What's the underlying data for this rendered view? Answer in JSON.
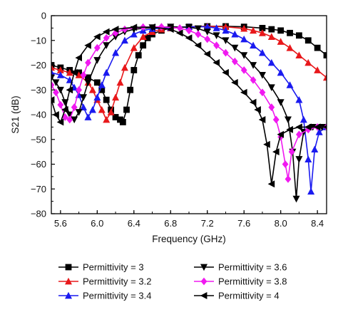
{
  "chart_data": {
    "type": "line",
    "title": "",
    "xlabel": "Frequency (GHz)",
    "ylabel": "S21 (dB)",
    "xlim": [
      5.5,
      8.5
    ],
    "ylim": [
      -80,
      0
    ],
    "xticks": [
      5.6,
      6.0,
      6.4,
      6.8,
      7.2,
      7.6,
      8.0,
      8.4
    ],
    "xtick_labels": [
      "5.6",
      "6.0",
      "6.4",
      "6.8",
      "7.2",
      "7.6",
      "8.0",
      "8.4"
    ],
    "yticks": [
      0,
      -10,
      -20,
      -30,
      -40,
      -50,
      -60,
      -70,
      -80
    ],
    "ytick_labels": [
      "0",
      "−10",
      "−20",
      "−30",
      "−40",
      "−50",
      "−60",
      "−70",
      "−80"
    ],
    "grid": false,
    "legend_position": "bottom",
    "series": [
      {
        "name": "Permittivity = 3",
        "color": "#000000",
        "marker": "square",
        "points": [
          [
            5.5,
            -20
          ],
          [
            5.6,
            -21
          ],
          [
            5.7,
            -22
          ],
          [
            5.8,
            -23
          ],
          [
            5.9,
            -25
          ],
          [
            6.0,
            -27
          ],
          [
            6.05,
            -30
          ],
          [
            6.1,
            -34
          ],
          [
            6.15,
            -38
          ],
          [
            6.2,
            -41
          ],
          [
            6.25,
            -42
          ],
          [
            6.28,
            -43
          ],
          [
            6.32,
            -38
          ],
          [
            6.36,
            -30
          ],
          [
            6.4,
            -22
          ],
          [
            6.45,
            -16
          ],
          [
            6.5,
            -12
          ],
          [
            6.55,
            -9
          ],
          [
            6.6,
            -7.5
          ],
          [
            6.7,
            -6
          ],
          [
            6.8,
            -5
          ],
          [
            7.0,
            -4.5
          ],
          [
            7.2,
            -4.3
          ],
          [
            7.4,
            -4.3
          ],
          [
            7.6,
            -4.5
          ],
          [
            7.8,
            -5
          ],
          [
            7.9,
            -5.5
          ],
          [
            8.0,
            -6
          ],
          [
            8.1,
            -7
          ],
          [
            8.2,
            -8
          ],
          [
            8.3,
            -10
          ],
          [
            8.4,
            -13
          ],
          [
            8.5,
            -16
          ]
        ]
      },
      {
        "name": "Permittivity = 3.2",
        "color": "#e8181b",
        "marker": "triangle-up",
        "points": [
          [
            5.5,
            -21
          ],
          [
            5.6,
            -22
          ],
          [
            5.7,
            -23
          ],
          [
            5.8,
            -24
          ],
          [
            5.9,
            -27
          ],
          [
            5.95,
            -30
          ],
          [
            6.0,
            -34
          ],
          [
            6.05,
            -38
          ],
          [
            6.1,
            -42
          ],
          [
            6.15,
            -39
          ],
          [
            6.2,
            -33
          ],
          [
            6.25,
            -27
          ],
          [
            6.3,
            -21
          ],
          [
            6.4,
            -13
          ],
          [
            6.5,
            -8.5
          ],
          [
            6.6,
            -6.5
          ],
          [
            6.7,
            -5.5
          ],
          [
            6.8,
            -5
          ],
          [
            7.0,
            -4.5
          ],
          [
            7.2,
            -4.3
          ],
          [
            7.4,
            -4.5
          ],
          [
            7.6,
            -5.2
          ],
          [
            7.7,
            -6
          ],
          [
            7.8,
            -7
          ],
          [
            7.9,
            -8.5
          ],
          [
            8.0,
            -10.5
          ],
          [
            8.1,
            -13
          ],
          [
            8.2,
            -16
          ],
          [
            8.3,
            -19
          ],
          [
            8.4,
            -22
          ],
          [
            8.5,
            -25
          ]
        ]
      },
      {
        "name": "Permittivity = 3.4",
        "color": "#1a1af0",
        "marker": "triangle-up",
        "points": [
          [
            5.5,
            -23
          ],
          [
            5.6,
            -24
          ],
          [
            5.7,
            -26
          ],
          [
            5.75,
            -29
          ],
          [
            5.8,
            -32
          ],
          [
            5.85,
            -37
          ],
          [
            5.9,
            -41
          ],
          [
            5.95,
            -38
          ],
          [
            6.0,
            -33
          ],
          [
            6.05,
            -28
          ],
          [
            6.1,
            -23
          ],
          [
            6.2,
            -15
          ],
          [
            6.3,
            -10
          ],
          [
            6.4,
            -7.5
          ],
          [
            6.5,
            -6
          ],
          [
            6.6,
            -5.3
          ],
          [
            6.8,
            -4.8
          ],
          [
            7.0,
            -4.5
          ],
          [
            7.2,
            -4.5
          ],
          [
            7.3,
            -5
          ],
          [
            7.4,
            -6
          ],
          [
            7.5,
            -7.5
          ],
          [
            7.6,
            -9.5
          ],
          [
            7.7,
            -12
          ],
          [
            7.8,
            -15
          ],
          [
            7.9,
            -19
          ],
          [
            8.0,
            -23
          ],
          [
            8.1,
            -28
          ],
          [
            8.2,
            -34
          ],
          [
            8.25,
            -42
          ],
          [
            8.3,
            -58
          ],
          [
            8.33,
            -71
          ],
          [
            8.37,
            -54
          ],
          [
            8.42,
            -47
          ],
          [
            8.5,
            -45
          ]
        ]
      },
      {
        "name": "Permittivity = 3.6",
        "color": "#000000",
        "marker": "triangle-down",
        "points": [
          [
            5.5,
            -25
          ],
          [
            5.55,
            -27
          ],
          [
            5.6,
            -30
          ],
          [
            5.65,
            -35
          ],
          [
            5.7,
            -40
          ],
          [
            5.75,
            -42
          ],
          [
            5.8,
            -39
          ],
          [
            5.85,
            -33
          ],
          [
            5.9,
            -27
          ],
          [
            6.0,
            -18
          ],
          [
            6.1,
            -12
          ],
          [
            6.2,
            -8.5
          ],
          [
            6.3,
            -6.5
          ],
          [
            6.4,
            -5.5
          ],
          [
            6.6,
            -4.8
          ],
          [
            6.8,
            -4.5
          ],
          [
            7.0,
            -4.7
          ],
          [
            7.1,
            -5.2
          ],
          [
            7.2,
            -6.5
          ],
          [
            7.3,
            -8
          ],
          [
            7.4,
            -10
          ],
          [
            7.5,
            -13
          ],
          [
            7.6,
            -16
          ],
          [
            7.7,
            -20
          ],
          [
            7.8,
            -24
          ],
          [
            7.9,
            -29
          ],
          [
            8.0,
            -35
          ],
          [
            8.08,
            -42
          ],
          [
            8.13,
            -55
          ],
          [
            8.17,
            -74
          ],
          [
            8.2,
            -58
          ],
          [
            8.25,
            -47
          ],
          [
            8.35,
            -45
          ],
          [
            8.45,
            -45
          ],
          [
            8.5,
            -45
          ]
        ]
      },
      {
        "name": "Permittivity = 3.8",
        "color": "#f019f0",
        "marker": "diamond",
        "points": [
          [
            5.5,
            -28
          ],
          [
            5.55,
            -31
          ],
          [
            5.6,
            -36
          ],
          [
            5.65,
            -41
          ],
          [
            5.7,
            -42
          ],
          [
            5.75,
            -37
          ],
          [
            5.8,
            -30
          ],
          [
            5.85,
            -24
          ],
          [
            5.9,
            -19
          ],
          [
            6.0,
            -13
          ],
          [
            6.1,
            -9
          ],
          [
            6.2,
            -7
          ],
          [
            6.3,
            -5.5
          ],
          [
            6.5,
            -4.6
          ],
          [
            6.7,
            -4.5
          ],
          [
            6.9,
            -5
          ],
          [
            7.0,
            -6
          ],
          [
            7.1,
            -7.5
          ],
          [
            7.2,
            -9.5
          ],
          [
            7.3,
            -12
          ],
          [
            7.4,
            -15
          ],
          [
            7.5,
            -18.5
          ],
          [
            7.6,
            -22
          ],
          [
            7.7,
            -26
          ],
          [
            7.8,
            -31
          ],
          [
            7.9,
            -37
          ],
          [
            7.95,
            -42
          ],
          [
            8.0,
            -49
          ],
          [
            8.05,
            -60
          ],
          [
            8.08,
            -66
          ],
          [
            8.12,
            -55
          ],
          [
            8.2,
            -48
          ],
          [
            8.3,
            -46
          ],
          [
            8.4,
            -45
          ],
          [
            8.5,
            -45
          ]
        ]
      },
      {
        "name": "Permittivity = 4",
        "color": "#000000",
        "marker": "triangle-left",
        "points": [
          [
            5.5,
            -34
          ],
          [
            5.55,
            -40
          ],
          [
            5.6,
            -43
          ],
          [
            5.65,
            -38
          ],
          [
            5.7,
            -30
          ],
          [
            5.75,
            -23
          ],
          [
            5.8,
            -17
          ],
          [
            5.9,
            -12
          ],
          [
            6.0,
            -8.5
          ],
          [
            6.1,
            -6.5
          ],
          [
            6.2,
            -5.5
          ],
          [
            6.4,
            -4.7
          ],
          [
            6.6,
            -4.6
          ],
          [
            6.8,
            -5.5
          ],
          [
            6.9,
            -7
          ],
          [
            7.0,
            -9
          ],
          [
            7.1,
            -12
          ],
          [
            7.2,
            -15.5
          ],
          [
            7.3,
            -19
          ],
          [
            7.4,
            -23
          ],
          [
            7.5,
            -27
          ],
          [
            7.6,
            -31
          ],
          [
            7.7,
            -35
          ],
          [
            7.75,
            -38
          ],
          [
            7.8,
            -42
          ],
          [
            7.85,
            -52
          ],
          [
            7.9,
            -68
          ],
          [
            7.95,
            -55
          ],
          [
            8.0,
            -48
          ],
          [
            8.1,
            -46
          ],
          [
            8.2,
            -45
          ],
          [
            8.3,
            -45
          ],
          [
            8.4,
            -45
          ],
          [
            8.5,
            -45
          ]
        ]
      }
    ]
  }
}
